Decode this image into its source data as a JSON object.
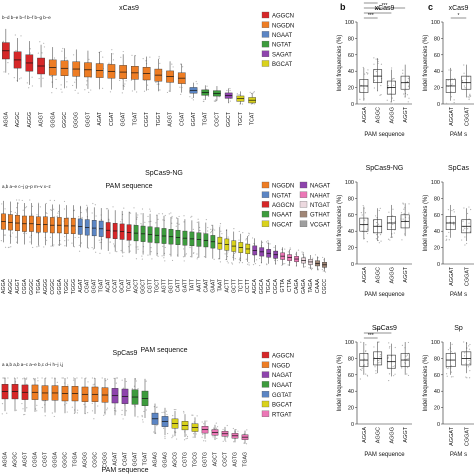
{
  "panel_letters": {
    "b": "b",
    "c": "c"
  },
  "chart_data": [
    {
      "id": "a-xcas9",
      "type": "box",
      "title": "xCas9",
      "xlabel": "PAM sequence",
      "ylabel": "",
      "ylim": [
        0,
        100
      ],
      "letters_text": "b–d   b–e   b–f   b–f   b–g   b–e",
      "categories": [
        "AGGA",
        "AGGC",
        "AGGG",
        "AGGT",
        "GGGA",
        "GGGC",
        "GGGG",
        "GGGT",
        "AGAT",
        "CGAT",
        "GGAT",
        "TGAT",
        "CGGT",
        "TGGT",
        "AGGT",
        "CGAT",
        "GGAT",
        "TGAT",
        "CGCT",
        "GGCT",
        "TGCT",
        "TCAT"
      ],
      "group_index": [
        0,
        0,
        0,
        0,
        1,
        1,
        1,
        1,
        1,
        1,
        1,
        1,
        1,
        1,
        1,
        1,
        2,
        3,
        3,
        4,
        5,
        5
      ],
      "medians": [
        70,
        58,
        54,
        50,
        48,
        47,
        46,
        45,
        44,
        43,
        42,
        41,
        40,
        38,
        36,
        34,
        18,
        15,
        14,
        11,
        7,
        5
      ],
      "legend": [
        {
          "label": "AGGCN",
          "color": "#d62728"
        },
        {
          "label": "NGGDN",
          "color": "#ee7d24"
        },
        {
          "label": "NGAAT",
          "color": "#5b85c4"
        },
        {
          "label": "NGTAT",
          "color": "#3d9b3d"
        },
        {
          "label": "SAGAT",
          "color": "#8e44ad"
        },
        {
          "label": "BGCAT",
          "color": "#d9d21c"
        }
      ]
    },
    {
      "id": "a-spcas9ng",
      "type": "box",
      "title": "SpCas9-NG",
      "xlabel": "PAM sequence",
      "ylabel": "",
      "ylim": [
        0,
        100
      ],
      "letters_text": "a,b   a–e   c–j   g–p   m–v   x–z",
      "categories": [
        "AGGA",
        "AGGC",
        "AGGT",
        "CGGA",
        "GGGC",
        "TGGA",
        "AGGG",
        "CGGC",
        "GGGA",
        "TGGC",
        "TGGG",
        "AGAT",
        "CGAT",
        "GGAT",
        "TGAT",
        "ACAT",
        "CCAT",
        "GCAT",
        "TCAT",
        "AGCT",
        "GGCT",
        "CGTT",
        "TGCT",
        "AGTT",
        "GGTT",
        "CATT",
        "GATT",
        "TATT",
        "AATT",
        "CAAT",
        "GAAT",
        "TAAT",
        "ACTT",
        "GCTT",
        "TCTT",
        "CCTT",
        "AGCA",
        "GGCA",
        "TGCA",
        "CGCA",
        "GTTA",
        "CTTA",
        "CAGA",
        "GAGA",
        "TAGA",
        "CAAA",
        "CGCC"
      ],
      "group_index": [
        0,
        0,
        0,
        0,
        0,
        0,
        0,
        0,
        0,
        0,
        0,
        1,
        1,
        1,
        1,
        2,
        2,
        2,
        2,
        3,
        3,
        3,
        3,
        3,
        3,
        3,
        3,
        3,
        3,
        3,
        3,
        4,
        4,
        4,
        4,
        4,
        5,
        5,
        5,
        5,
        6,
        6,
        6,
        7,
        7,
        8,
        8
      ],
      "medians": [
        70,
        69,
        68,
        67,
        67,
        66,
        66,
        65,
        65,
        64,
        64,
        63,
        62,
        61,
        60,
        58,
        57,
        56,
        55,
        54,
        53,
        52,
        51,
        50,
        49,
        48,
        47,
        46,
        45,
        44,
        42,
        40,
        38,
        36,
        34,
        32,
        30,
        28,
        26,
        24,
        22,
        20,
        18,
        16,
        14,
        12,
        10
      ],
      "legend": [
        {
          "label": "NGGDN",
          "color": "#ee7d24"
        },
        {
          "label": "NGTAT",
          "color": "#5b85c4"
        },
        {
          "label": "AGGCN",
          "color": "#d62728"
        },
        {
          "label": "NGAAT",
          "color": "#3d9b3d"
        },
        {
          "label": "NGCAT",
          "color": "#d9d21c"
        },
        {
          "label": "NAGAT",
          "color": "#8e44ad"
        },
        {
          "label": "NAHAT",
          "color": "#ec77b6"
        },
        {
          "label": "NTGAT",
          "color": "#ecd9df"
        },
        {
          "label": "GTHAT",
          "color": "#a08676"
        },
        {
          "label": "VCGAT",
          "color": "#9e9e9e"
        }
      ]
    },
    {
      "id": "a-spcas9",
      "type": "box",
      "title": "SpCas9",
      "xlabel": "PAM sequence",
      "ylabel": "",
      "ylim": [
        0,
        100
      ],
      "letters_text": "a  a,b  a,b  a–c   a–e   b,c   d–i   h–j   i,j",
      "categories": [
        "AGGA",
        "AGGC",
        "AGGT",
        "CGGA",
        "CGGT",
        "GGGA",
        "GGGC",
        "TGGA",
        "AGGG",
        "CGGC",
        "CGGG",
        "AGAT",
        "CGAT",
        "GGAT",
        "TGAT",
        "AGAG",
        "GGAG",
        "AGCG",
        "CGTG",
        "TGCG",
        "GGTG",
        "AGCT",
        "CGCT",
        "AGTG",
        "TGAG"
      ],
      "group_index": [
        0,
        0,
        0,
        1,
        1,
        1,
        1,
        1,
        1,
        1,
        1,
        2,
        2,
        3,
        3,
        4,
        4,
        5,
        5,
        5,
        6,
        6,
        6,
        6,
        6
      ],
      "medians": [
        80,
        80,
        79,
        79,
        78,
        78,
        77,
        77,
        76,
        76,
        75,
        74,
        73,
        72,
        70,
        40,
        36,
        33,
        30,
        27,
        24,
        20,
        18,
        15,
        13
      ],
      "legend": [
        {
          "label": "AGGCN",
          "color": "#d62728"
        },
        {
          "label": "NGGD",
          "color": "#ee7d24"
        },
        {
          "label": "NAGAT",
          "color": "#8e44ad"
        },
        {
          "label": "NGAAT",
          "color": "#3d9b3d"
        },
        {
          "label": "GGTAT",
          "color": "#5b85c4"
        },
        {
          "label": "BGCAT",
          "color": "#d9d21c"
        },
        {
          "label": "RTGAT",
          "color": "#ec77b6"
        }
      ]
    },
    {
      "id": "b-xcas9",
      "type": "box",
      "title": "xCas9",
      "xlabel": "PAM sequence",
      "ylabel": "Indel frequencies (%)",
      "ylim": [
        0,
        100
      ],
      "yticks": [
        0,
        20,
        40,
        60,
        80,
        100
      ],
      "categories": [
        "AGGA",
        "AGGC",
        "AGGG",
        "AGGT"
      ],
      "medians": [
        22,
        34,
        20,
        26
      ],
      "sig": [
        "***",
        "***",
        "***",
        "***",
        "***"
      ]
    },
    {
      "id": "b-spcas9ng",
      "type": "box",
      "title": "SpCas9-NG",
      "xlabel": "PAM sequence",
      "ylabel": "Indel frequencies (%)",
      "ylim": [
        0,
        100
      ],
      "yticks": [
        0,
        20,
        40,
        60,
        80,
        100
      ],
      "categories": [
        "AGGA",
        "AGGC",
        "AGGG",
        "AGGT"
      ],
      "medians": [
        48,
        46,
        50,
        52
      ],
      "sig": []
    },
    {
      "id": "b-spcas9",
      "type": "box",
      "title": "SpCas9",
      "xlabel": "PAM sequence",
      "ylabel": "Indel frequencies (%)",
      "ylim": [
        0,
        100
      ],
      "yticks": [
        0,
        20,
        40,
        60,
        80,
        100
      ],
      "categories": [
        "AGGA",
        "AGGC",
        "AGGG",
        "AGGT"
      ],
      "medians": [
        78,
        80,
        76,
        78
      ],
      "sig": [
        "***",
        "***"
      ]
    },
    {
      "id": "c-xcas9",
      "type": "box",
      "title": "xCas9",
      "xlabel": "PAM s",
      "ylabel": "Indel frequencies (%)",
      "ylim": [
        0,
        100
      ],
      "yticks": [
        0,
        20,
        40,
        60,
        80,
        100
      ],
      "categories": [
        "AGGAT",
        "CGGAT"
      ],
      "medians": [
        22,
        26
      ],
      "sig": [
        "*"
      ]
    },
    {
      "id": "c-spcas9ng",
      "type": "box",
      "title": "SpCas",
      "xlabel": "PAM s",
      "ylabel": "Indel frequencies (%)",
      "ylim": [
        0,
        100
      ],
      "yticks": [
        0,
        20,
        40,
        60,
        80,
        100
      ],
      "categories": [
        "AGGAT",
        "CGGAT"
      ],
      "medians": [
        50,
        46
      ],
      "sig": []
    },
    {
      "id": "c-spcas9",
      "type": "box",
      "title": "Sp",
      "xlabel": "PAM s",
      "ylabel": "Indel frequencies (%)",
      "ylim": [
        0,
        100
      ],
      "yticks": [
        0,
        20,
        40,
        60,
        80,
        100
      ],
      "categories": [
        "AGGAT",
        "CGGAT"
      ],
      "medians": [
        78,
        80
      ],
      "sig": []
    }
  ]
}
